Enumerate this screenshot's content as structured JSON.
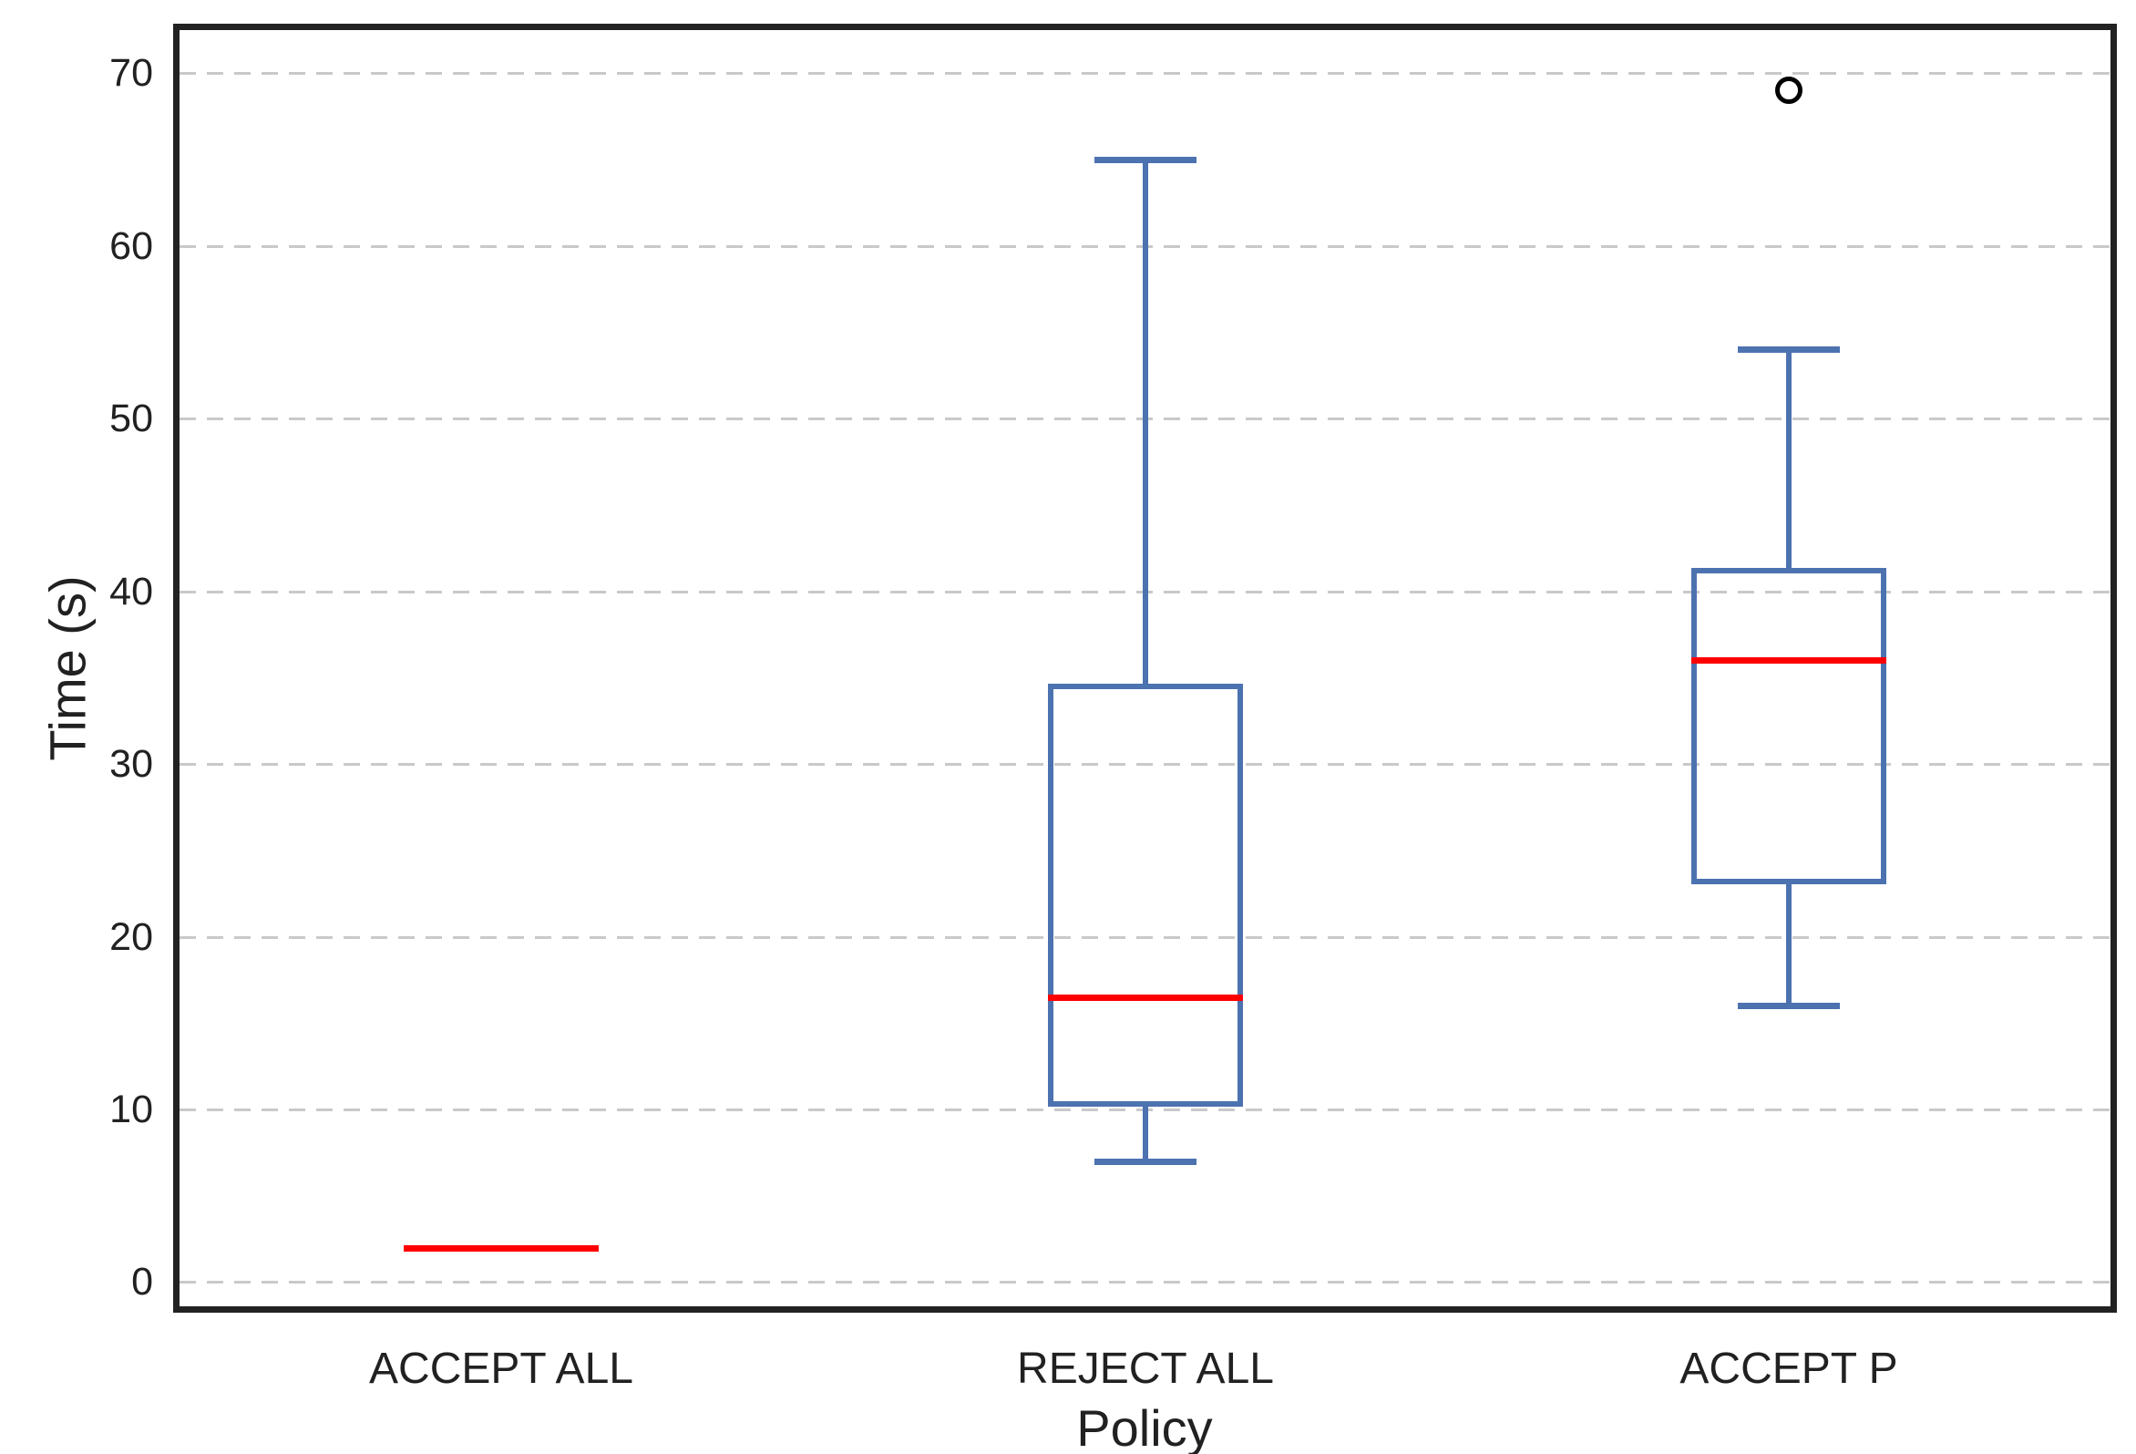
{
  "chart_data": {
    "type": "boxplot",
    "title": "",
    "xlabel": "Policy",
    "ylabel": "Time (s)",
    "categories": [
      "ACCEPT ALL",
      "REJECT ALL",
      "ACCEPT P"
    ],
    "yticks": [
      0,
      10,
      20,
      30,
      40,
      50,
      60,
      70
    ],
    "ylim": [
      -1.4,
      72.5
    ],
    "grid": "horizontal-dashed",
    "legend_position": "none",
    "series": [
      {
        "category": "ACCEPT ALL",
        "whisker_low": 2,
        "q1": 2,
        "median": 2,
        "q3": 2,
        "whisker_high": 2,
        "outliers": []
      },
      {
        "category": "REJECT ALL",
        "whisker_low": 7,
        "q1": 10.3,
        "median": 16.5,
        "q3": 34.5,
        "whisker_high": 65,
        "outliers": []
      },
      {
        "category": "ACCEPT P",
        "whisker_low": 16,
        "q1": 23.2,
        "median": 36,
        "q3": 41.2,
        "whisker_high": 54,
        "outliers": [
          69
        ]
      }
    ],
    "colors": {
      "box": "#4C72B0",
      "median": "#FF0000",
      "outlier": "#000000",
      "grid": "#C9C9C9",
      "spine": "#222222",
      "text": "#212121",
      "background": "#FFFFFF"
    }
  }
}
